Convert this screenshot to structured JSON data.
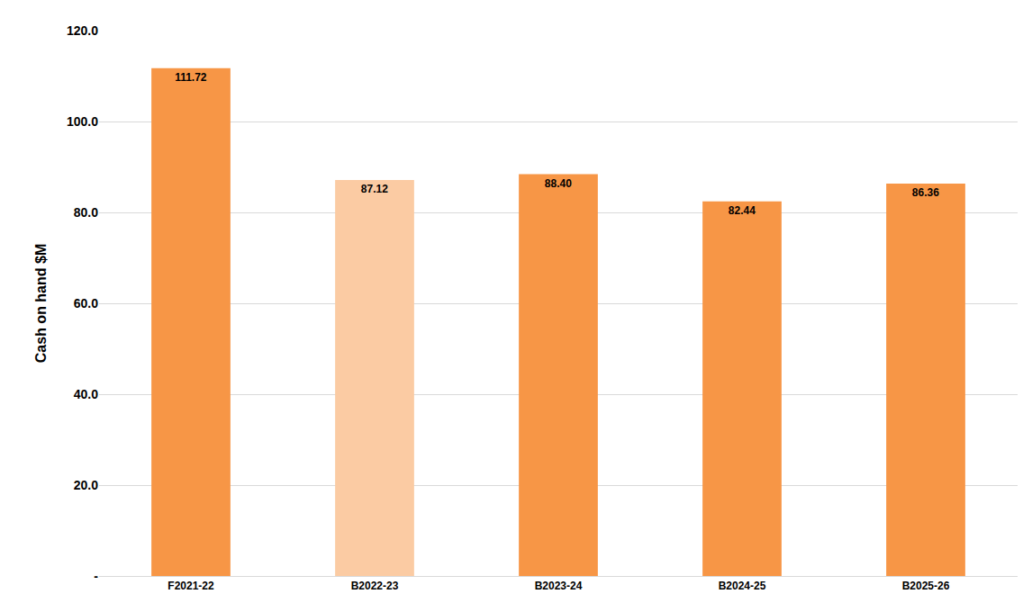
{
  "chart_data": {
    "type": "bar",
    "y_label": "Cash on hand $M",
    "categories": [
      "F2021-22",
      "B2022-23",
      "B2023-24",
      "B2024-25",
      "B2025-26"
    ],
    "values": [
      111.72,
      87.12,
      88.4,
      82.44,
      86.36
    ],
    "value_labels": [
      "111.72",
      "87.12",
      "88.40",
      "82.44",
      "86.36"
    ],
    "colors": [
      "#f79646",
      "#fbcba3",
      "#f79646",
      "#f79646",
      "#f79646"
    ],
    "ylim": [
      0,
      120
    ],
    "yticks": [
      {
        "value": 0,
        "label": "-"
      },
      {
        "value": 20,
        "label": "20.0"
      },
      {
        "value": 40,
        "label": "40.0"
      },
      {
        "value": 60,
        "label": "60.0"
      },
      {
        "value": 80,
        "label": "80.0"
      },
      {
        "value": 100,
        "label": "100.0"
      },
      {
        "value": 120,
        "label": "120.0"
      }
    ],
    "grid": true,
    "data_labels": true
  }
}
